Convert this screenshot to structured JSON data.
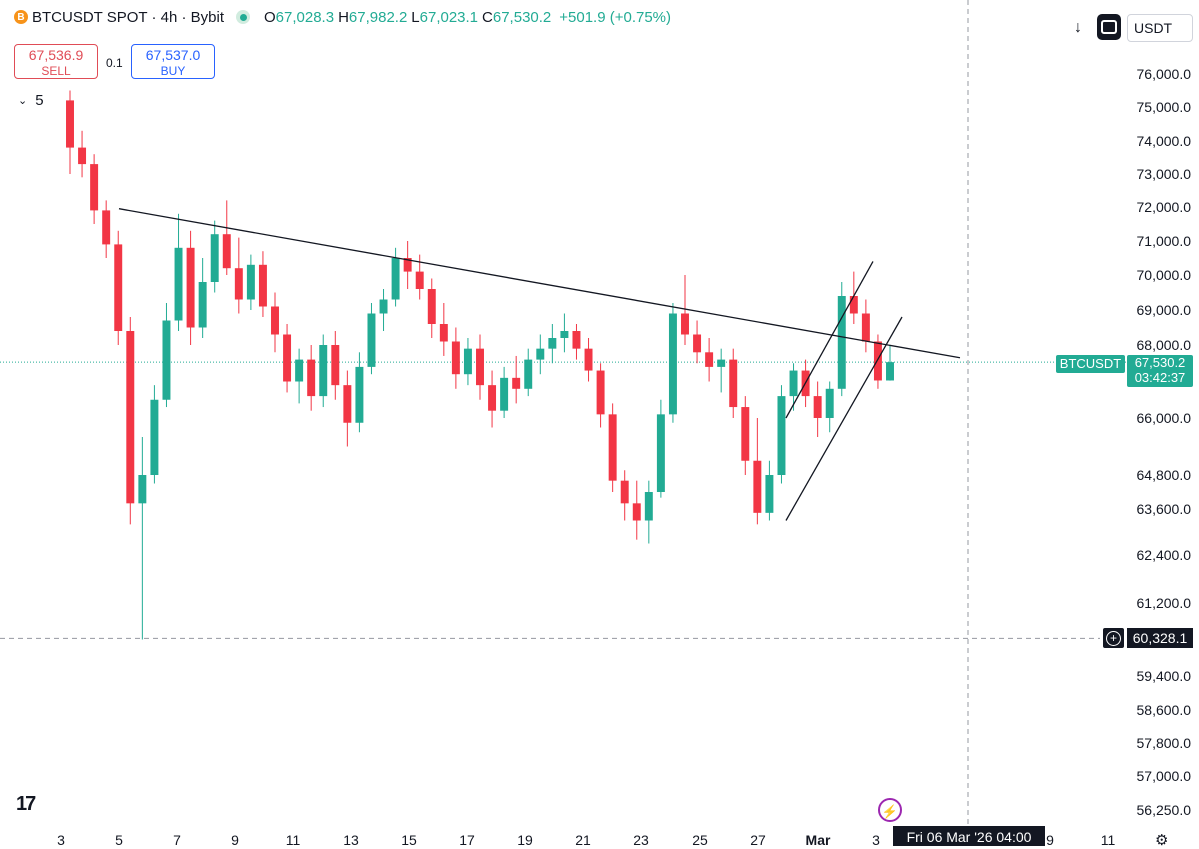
{
  "header": {
    "coin_letter": "B",
    "symbol_title": "BTCUSDT SPOT · 4h · Bybit",
    "ohlc": [
      {
        "label": "O",
        "value": "67,028.3"
      },
      {
        "label": "H",
        "value": "67,982.2"
      },
      {
        "label": "L",
        "value": "67,023.1"
      },
      {
        "label": "C",
        "value": "67,530.2"
      }
    ],
    "change": "+501.9 (+0.75%)"
  },
  "trade": {
    "sell_price": "67,536.9",
    "sell_label": "SELL",
    "buy_price": "67,537.0",
    "buy_label": "BUY",
    "spread": "0.1"
  },
  "indicator_count": "5",
  "toolbar": {
    "download_glyph": "↓",
    "currency": "USDT"
  },
  "price_axis": {
    "labels": [
      "76,000.0",
      "75,000.0",
      "74,000.0",
      "73,000.0",
      "72,000.0",
      "71,000.0",
      "70,000.0",
      "69,000.0",
      "68,000.0",
      "66,000.0",
      "64,800.0",
      "63,600.0",
      "62,400.0",
      "61,200.0",
      "59,400.0",
      "58,600.0",
      "57,800.0",
      "57,000.0",
      "56,250.0"
    ],
    "last_symbol": "BTCUSDT",
    "last_price": "67,530.2",
    "countdown": "03:42:37",
    "crosshair_price": "60,328.1"
  },
  "time_axis": {
    "labels": [
      "3",
      "5",
      "7",
      "9",
      "11",
      "13",
      "15",
      "17",
      "19",
      "21",
      "23",
      "25",
      "27",
      "Mar",
      "3",
      "9",
      "11"
    ],
    "crosshair_date": "Fri 06 Mar '26   04:00"
  },
  "colors": {
    "up": "#22ab94",
    "down": "#f23645",
    "line": "#131722"
  },
  "chart_data": {
    "type": "candlestick",
    "symbol": "BTCUSDT",
    "timeframe": "4h",
    "x_range": [
      "Feb 2",
      "Mar 11"
    ],
    "ylim": [
      56000,
      76500
    ],
    "grid": false,
    "candles": [
      {
        "o": 75200,
        "h": 75500,
        "l": 73000,
        "c": 73800
      },
      {
        "o": 73800,
        "h": 74300,
        "l": 72900,
        "c": 73300
      },
      {
        "o": 73300,
        "h": 73600,
        "l": 71500,
        "c": 71900
      },
      {
        "o": 71900,
        "h": 72200,
        "l": 70500,
        "c": 70900
      },
      {
        "o": 70900,
        "h": 71300,
        "l": 68000,
        "c": 68400
      },
      {
        "o": 68400,
        "h": 68800,
        "l": 63200,
        "c": 63800
      },
      {
        "o": 63800,
        "h": 65600,
        "l": 60300,
        "c": 64800
      },
      {
        "o": 64800,
        "h": 66900,
        "l": 64500,
        "c": 66500
      },
      {
        "o": 66500,
        "h": 69200,
        "l": 66300,
        "c": 68700
      },
      {
        "o": 68700,
        "h": 71800,
        "l": 68400,
        "c": 70800
      },
      {
        "o": 70800,
        "h": 71300,
        "l": 68000,
        "c": 68500
      },
      {
        "o": 68500,
        "h": 70500,
        "l": 68200,
        "c": 69800
      },
      {
        "o": 69800,
        "h": 71600,
        "l": 69500,
        "c": 71200
      },
      {
        "o": 71200,
        "h": 72200,
        "l": 70000,
        "c": 70200
      },
      {
        "o": 70200,
        "h": 71100,
        "l": 68900,
        "c": 69300
      },
      {
        "o": 69300,
        "h": 70600,
        "l": 69000,
        "c": 70300
      },
      {
        "o": 70300,
        "h": 70700,
        "l": 68800,
        "c": 69100
      },
      {
        "o": 69100,
        "h": 69500,
        "l": 67800,
        "c": 68300
      },
      {
        "o": 68300,
        "h": 68600,
        "l": 66700,
        "c": 67000
      },
      {
        "o": 67000,
        "h": 67900,
        "l": 66400,
        "c": 67600
      },
      {
        "o": 67600,
        "h": 68000,
        "l": 66200,
        "c": 66600
      },
      {
        "o": 66600,
        "h": 68300,
        "l": 66300,
        "c": 68000
      },
      {
        "o": 68000,
        "h": 68400,
        "l": 66500,
        "c": 66900
      },
      {
        "o": 66900,
        "h": 67300,
        "l": 65400,
        "c": 65900
      },
      {
        "o": 65900,
        "h": 67800,
        "l": 65700,
        "c": 67400
      },
      {
        "o": 67400,
        "h": 69200,
        "l": 67200,
        "c": 68900
      },
      {
        "o": 68900,
        "h": 69600,
        "l": 68400,
        "c": 69300
      },
      {
        "o": 69300,
        "h": 70800,
        "l": 69100,
        "c": 70500
      },
      {
        "o": 70500,
        "h": 71000,
        "l": 69600,
        "c": 70100
      },
      {
        "o": 70100,
        "h": 70600,
        "l": 69300,
        "c": 69600
      },
      {
        "o": 69600,
        "h": 69900,
        "l": 68200,
        "c": 68600
      },
      {
        "o": 68600,
        "h": 69200,
        "l": 67700,
        "c": 68100
      },
      {
        "o": 68100,
        "h": 68500,
        "l": 66800,
        "c": 67200
      },
      {
        "o": 67200,
        "h": 68200,
        "l": 66900,
        "c": 67900
      },
      {
        "o": 67900,
        "h": 68300,
        "l": 66500,
        "c": 66900
      },
      {
        "o": 66900,
        "h": 67300,
        "l": 65800,
        "c": 66200
      },
      {
        "o": 66200,
        "h": 67400,
        "l": 66000,
        "c": 67100
      },
      {
        "o": 67100,
        "h": 67700,
        "l": 66400,
        "c": 66800
      },
      {
        "o": 66800,
        "h": 67900,
        "l": 66600,
        "c": 67600
      },
      {
        "o": 67600,
        "h": 68300,
        "l": 67200,
        "c": 67900
      },
      {
        "o": 67900,
        "h": 68600,
        "l": 67500,
        "c": 68200
      },
      {
        "o": 68200,
        "h": 68900,
        "l": 67800,
        "c": 68400
      },
      {
        "o": 68400,
        "h": 68600,
        "l": 67600,
        "c": 67900
      },
      {
        "o": 67900,
        "h": 68200,
        "l": 67000,
        "c": 67300
      },
      {
        "o": 67300,
        "h": 67500,
        "l": 65800,
        "c": 66100
      },
      {
        "o": 66100,
        "h": 66400,
        "l": 64200,
        "c": 64600
      },
      {
        "o": 64600,
        "h": 64900,
        "l": 63300,
        "c": 63800
      },
      {
        "o": 63800,
        "h": 64600,
        "l": 62800,
        "c": 63300
      },
      {
        "o": 63300,
        "h": 64600,
        "l": 62700,
        "c": 64200
      },
      {
        "o": 64200,
        "h": 66500,
        "l": 64000,
        "c": 66100
      },
      {
        "o": 66100,
        "h": 69200,
        "l": 65900,
        "c": 68900
      },
      {
        "o": 68900,
        "h": 70000,
        "l": 68000,
        "c": 68300
      },
      {
        "o": 68300,
        "h": 68700,
        "l": 67500,
        "c": 67800
      },
      {
        "o": 67800,
        "h": 68200,
        "l": 67000,
        "c": 67400
      },
      {
        "o": 67400,
        "h": 67900,
        "l": 66700,
        "c": 67600
      },
      {
        "o": 67600,
        "h": 67900,
        "l": 66000,
        "c": 66300
      },
      {
        "o": 66300,
        "h": 66600,
        "l": 64800,
        "c": 65100
      },
      {
        "o": 65100,
        "h": 66000,
        "l": 63200,
        "c": 63500
      },
      {
        "o": 63500,
        "h": 65100,
        "l": 63300,
        "c": 64800
      },
      {
        "o": 64800,
        "h": 66900,
        "l": 64500,
        "c": 66600
      },
      {
        "o": 66600,
        "h": 67500,
        "l": 66200,
        "c": 67300
      },
      {
        "o": 67300,
        "h": 67600,
        "l": 66300,
        "c": 66600
      },
      {
        "o": 66600,
        "h": 67000,
        "l": 65600,
        "c": 66000
      },
      {
        "o": 66000,
        "h": 67000,
        "l": 65700,
        "c": 66800
      },
      {
        "o": 66800,
        "h": 69800,
        "l": 66600,
        "c": 69400
      },
      {
        "o": 69400,
        "h": 70100,
        "l": 68600,
        "c": 68900
      },
      {
        "o": 68900,
        "h": 69300,
        "l": 67800,
        "c": 68100
      },
      {
        "o": 68100,
        "h": 68300,
        "l": 66800,
        "c": 67028
      },
      {
        "o": 67028,
        "h": 67982,
        "l": 67023,
        "c": 67530
      }
    ],
    "trendlines": [
      {
        "from": {
          "x": "Feb 5",
          "y": 71950
        },
        "to": {
          "x": "Mar 6",
          "y": 67650
        },
        "label": ""
      },
      {
        "from": {
          "x": "Feb 28",
          "y": 63300
        },
        "to": {
          "x": "Mar 4",
          "y": 68800
        },
        "label": ""
      },
      {
        "from": {
          "x": "Feb 28",
          "y": 66000
        },
        "to": {
          "x": "Mar 3",
          "y": 70400
        },
        "label": ""
      }
    ],
    "last_price": 67530.2,
    "crosshair_price": 60328.1
  }
}
